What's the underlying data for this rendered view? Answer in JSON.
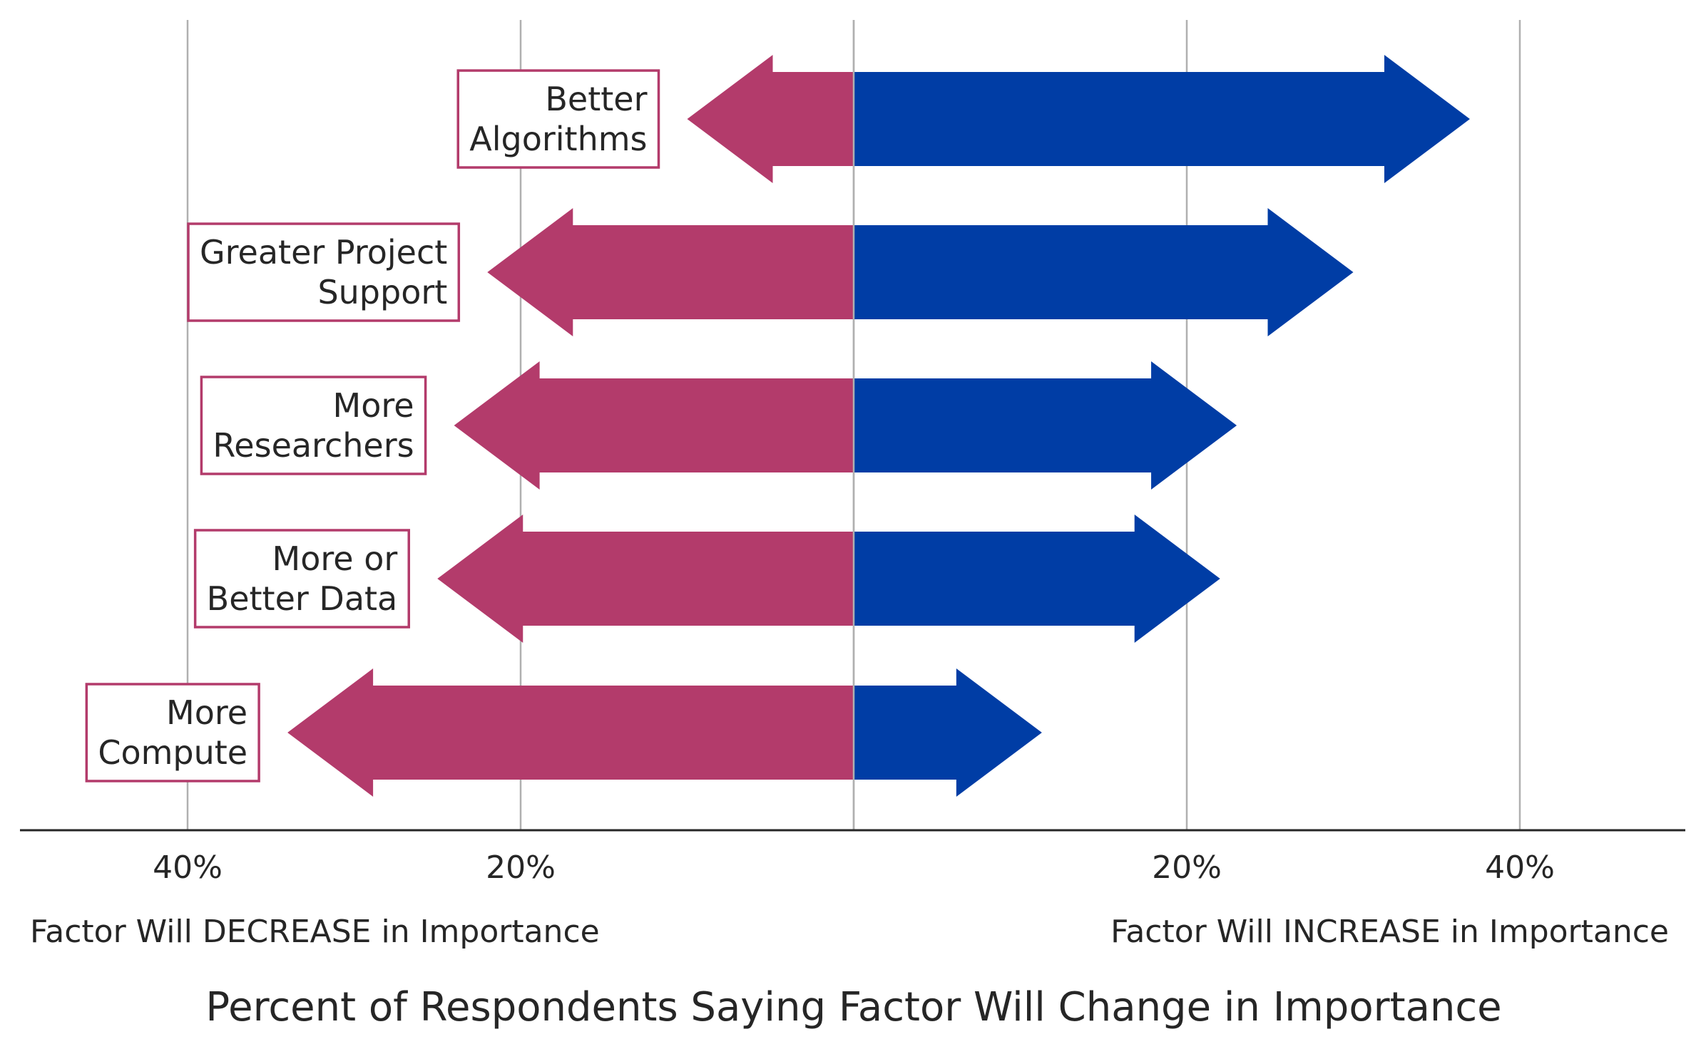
{
  "chart_data": {
    "type": "bar",
    "orientation": "horizontal-diverging",
    "categories": [
      [
        "Better",
        "Algorithms"
      ],
      [
        "Greater Project",
        "Support"
      ],
      [
        "More",
        "Researchers"
      ],
      [
        "More or",
        "Better Data"
      ],
      [
        "More",
        "Compute"
      ]
    ],
    "series": [
      {
        "values": [
          10,
          22,
          24,
          25,
          34
        ],
        "color": "#b33b6b"
      },
      {
        "values": [
          37,
          30,
          23,
          22,
          11.3
        ],
        "color": "#003da5"
      }
    ],
    "xticks": [
      {
        "value": -40,
        "label": "40%"
      },
      {
        "value": -20,
        "label": "20%"
      },
      {
        "value": 20,
        "label": "20%"
      },
      {
        "value": 40,
        "label": "40%"
      }
    ],
    "xlim": [
      -50,
      50
    ],
    "grid": true,
    "xlabel_left": "Factor Will DECREASE in Importance",
    "xlabel_right": "Factor Will INCREASE in Importance",
    "xlabel": "Percent of Respondents Saying Factor Will Change in Importance",
    "label_border_color": "#b33b6b",
    "gridline_color": "#b0b0b0"
  }
}
